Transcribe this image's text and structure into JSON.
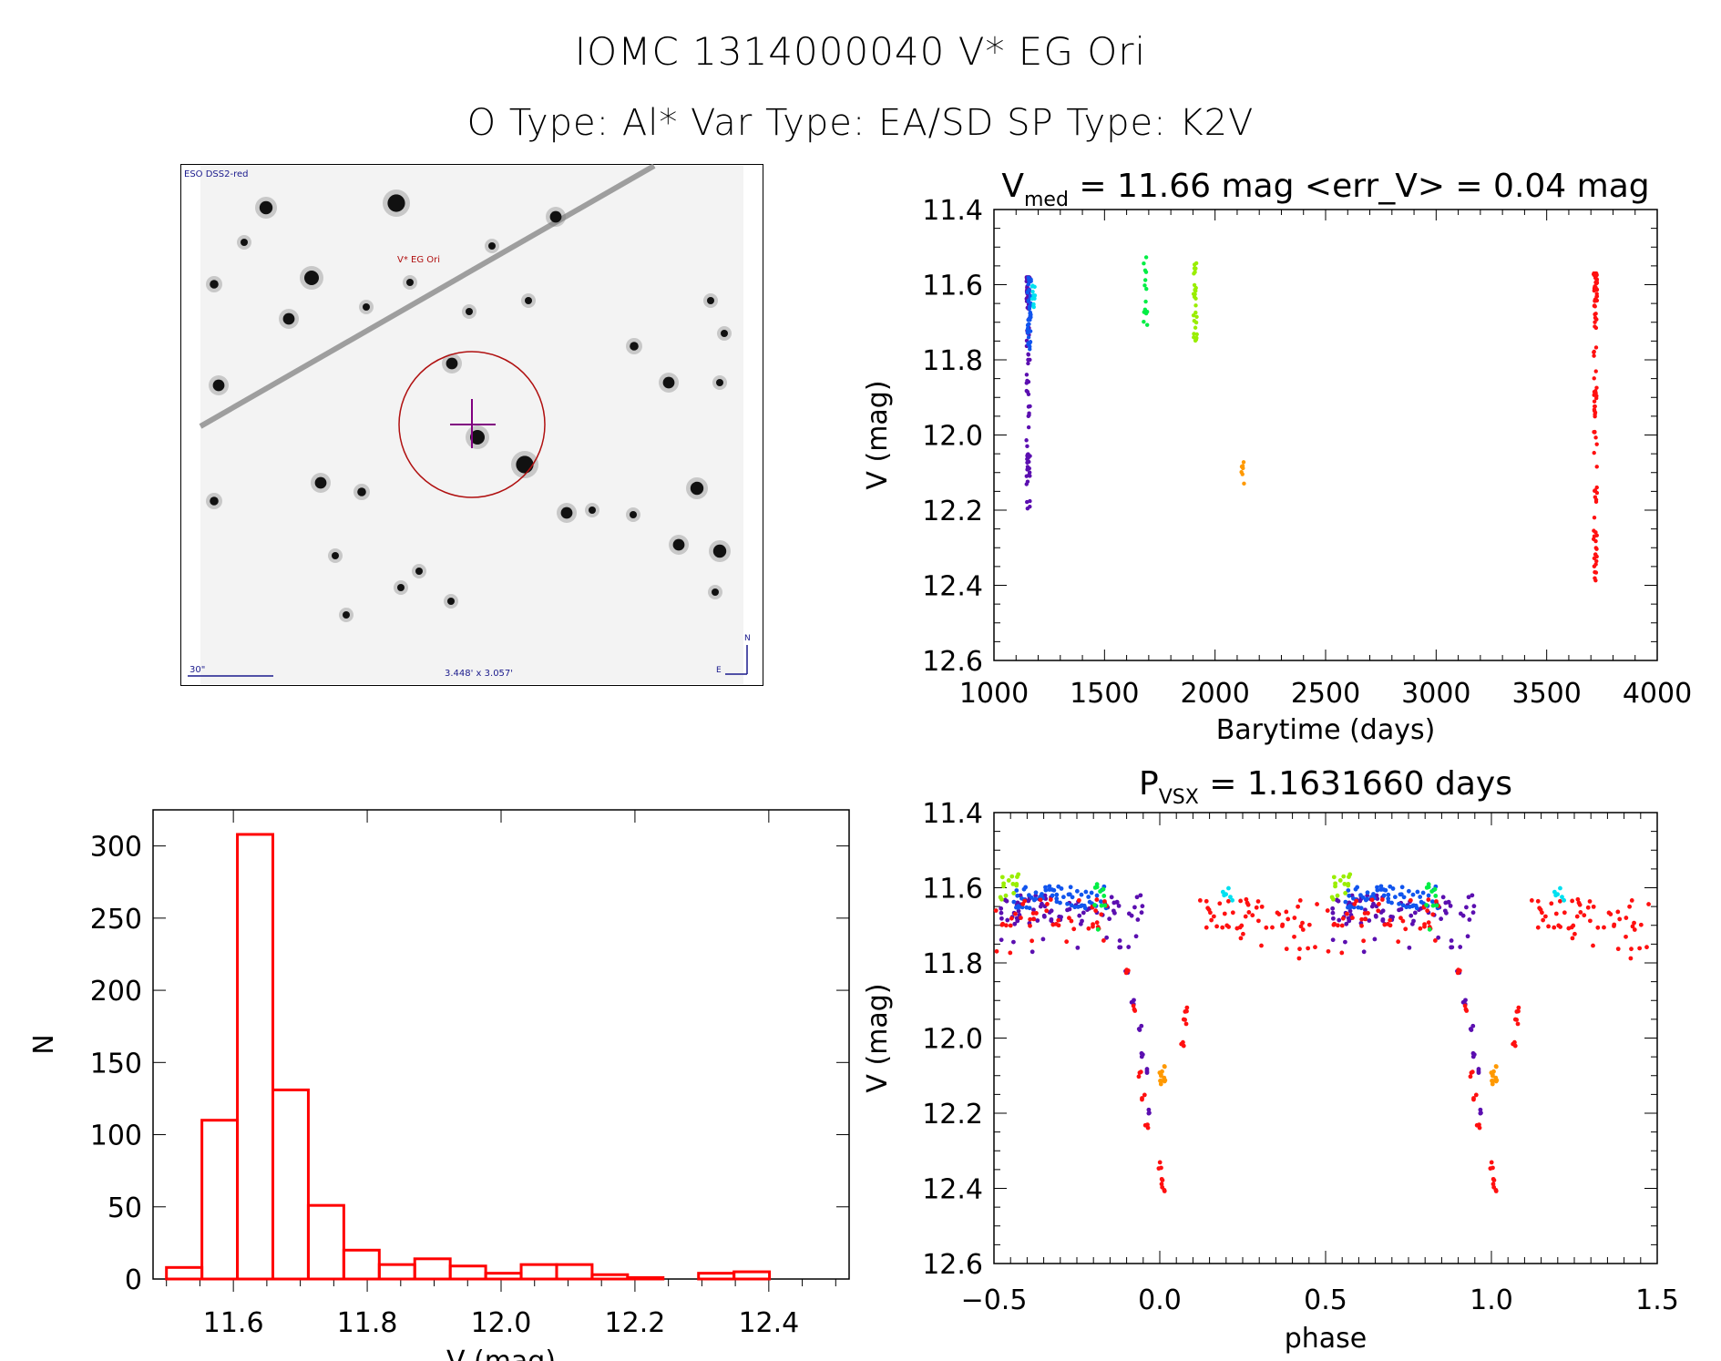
{
  "header": {
    "title": "IOMC 1314000040   V* EG Ori",
    "subtitle": "O Type: Al*  Var Type: EA/SD  SP Type: K2V"
  },
  "finder_chart": {
    "survey_label": "ESO DSS2-red",
    "target_label": "V* EG Ori",
    "scale_bar_label": "30\"",
    "field_size_label": "3.448' x 3.057'",
    "compass_north": "N",
    "compass_east": "E",
    "colors": {
      "overlay_blue": "#1a1a8c",
      "circle_red": "#b01010",
      "cross_purple": "#800080"
    }
  },
  "chart_data": [
    {
      "id": "lightcurve",
      "type": "scatter",
      "title_main": "V",
      "title_sub": "med",
      "title_rest": " = 11.66 mag <err_V> = 0.04 mag",
      "xlabel": "Barytime (days)",
      "ylabel": "V (mag)",
      "xlim": [
        1000,
        4000
      ],
      "ylim": [
        12.6,
        11.4
      ],
      "xticks": [
        "1000",
        "1500",
        "2000",
        "2500",
        "3000",
        "3500",
        "4000"
      ],
      "yticks": [
        "11.4",
        "11.6",
        "11.8",
        "12.0",
        "12.2",
        "12.4",
        "12.6"
      ],
      "series": [
        {
          "name": "season1-purple",
          "color": "#5b0fb0",
          "x": 1155,
          "ymin": 11.58,
          "ymax": 12.2,
          "n": 90
        },
        {
          "name": "season1-blue",
          "color": "#1155ee",
          "x": 1160,
          "ymin": 11.58,
          "ymax": 11.78,
          "n": 45
        },
        {
          "name": "season1-cyan",
          "color": "#00e0f0",
          "x": 1180,
          "ymin": 11.6,
          "ymax": 11.67,
          "n": 12
        },
        {
          "name": "season2-green",
          "color": "#00ee44",
          "x": 1685,
          "ymin": 11.52,
          "ymax": 11.72,
          "n": 14
        },
        {
          "name": "season3-lime",
          "color": "#99ee00",
          "x": 1910,
          "ymin": 11.53,
          "ymax": 11.76,
          "n": 28
        },
        {
          "name": "season4-orange",
          "color": "#ff9900",
          "x": 2125,
          "ymin": 12.07,
          "ymax": 12.13,
          "n": 7
        },
        {
          "name": "season5-red",
          "color": "#ff1010",
          "x": 3720,
          "ymin": 11.57,
          "ymax": 12.41,
          "n": 110
        }
      ]
    },
    {
      "id": "histogram",
      "type": "bar",
      "xlabel": "V (mag)",
      "ylabel": "N",
      "xlim": [
        11.48,
        12.52
      ],
      "ylim": [
        0,
        325
      ],
      "xticks": [
        "11.6",
        "11.8",
        "12.0",
        "12.2",
        "12.4"
      ],
      "yticks": [
        "0",
        "50",
        "100",
        "150",
        "200",
        "250",
        "300"
      ],
      "bin_edges": [
        11.5,
        11.553,
        11.606,
        11.659,
        11.712,
        11.765,
        11.818,
        11.871,
        11.924,
        11.977,
        12.03,
        12.083,
        12.136,
        12.189,
        12.242,
        12.295,
        12.348,
        12.401
      ],
      "values": [
        8,
        110,
        308,
        131,
        51,
        20,
        10,
        14,
        9,
        4,
        10,
        10,
        3,
        1,
        0,
        4,
        5
      ],
      "color": "#ff0000"
    },
    {
      "id": "phased",
      "type": "scatter",
      "title_main": "P",
      "title_sub": "VSX",
      "title_rest": " = 1.1631660 days",
      "xlabel": "phase",
      "ylabel": "V (mag)",
      "xlim": [
        -0.5,
        1.5
      ],
      "ylim": [
        12.6,
        11.4
      ],
      "xticks": [
        "−0.5",
        "0.0",
        "0.5",
        "1.0",
        "1.5"
      ],
      "yticks": [
        "11.4",
        "11.6",
        "11.8",
        "12.0",
        "12.2",
        "12.4",
        "12.6"
      ],
      "period_days": 1.163166,
      "segments": [
        {
          "color": "#5b0fb0",
          "phase": [
            -0.48,
            -0.22
          ],
          "ymean": 11.66,
          "spread": 0.04,
          "n": 60
        },
        {
          "color": "#5b0fb0",
          "phase": [
            -0.22,
            -0.05
          ],
          "ymean": 11.66,
          "spread": 0.04,
          "n": 25,
          "dip": true
        },
        {
          "color": "#1155ee",
          "phase": [
            -0.44,
            -0.16
          ],
          "ymean": 11.625,
          "spread": 0.03,
          "n": 60
        },
        {
          "color": "#ff1010",
          "phase": [
            -0.5,
            -0.15
          ],
          "ymean": 11.67,
          "spread": 0.04,
          "n": 45
        },
        {
          "color": "#ff1010",
          "phase": [
            0.12,
            0.48
          ],
          "ymean": 11.67,
          "spread": 0.04,
          "n": 55
        },
        {
          "color": "#99ee00",
          "phase": [
            -0.5,
            -0.42
          ],
          "ymean": 11.6,
          "spread": 0.04,
          "n": 14
        },
        {
          "color": "#00ee44",
          "phase": [
            -0.2,
            -0.16
          ],
          "ymean": 11.62,
          "spread": 0.03,
          "n": 10
        },
        {
          "color": "#00e0f0",
          "phase": [
            0.19,
            0.22
          ],
          "ymean": 11.62,
          "spread": 0.02,
          "n": 6
        }
      ],
      "eclipse": {
        "purple": [
          [
            -0.12,
            11.75
          ],
          [
            -0.1,
            11.82
          ],
          [
            -0.08,
            11.9
          ],
          [
            -0.06,
            11.97
          ],
          [
            -0.05,
            12.04
          ],
          [
            -0.04,
            12.09
          ],
          [
            -0.03,
            12.2
          ]
        ],
        "red": [
          [
            -0.1,
            11.82
          ],
          [
            -0.08,
            11.92
          ],
          [
            -0.06,
            12.1
          ],
          [
            -0.05,
            12.16
          ],
          [
            -0.04,
            12.23
          ],
          [
            0.0,
            12.34
          ],
          [
            0.005,
            12.38
          ],
          [
            0.01,
            12.4
          ],
          [
            0.07,
            12.02
          ],
          [
            0.075,
            11.96
          ],
          [
            0.08,
            11.92
          ]
        ],
        "orange": [
          [
            0.0,
            12.1
          ],
          [
            0.005,
            12.12
          ],
          [
            0.01,
            12.08
          ],
          [
            0.015,
            12.11
          ]
        ]
      }
    }
  ]
}
